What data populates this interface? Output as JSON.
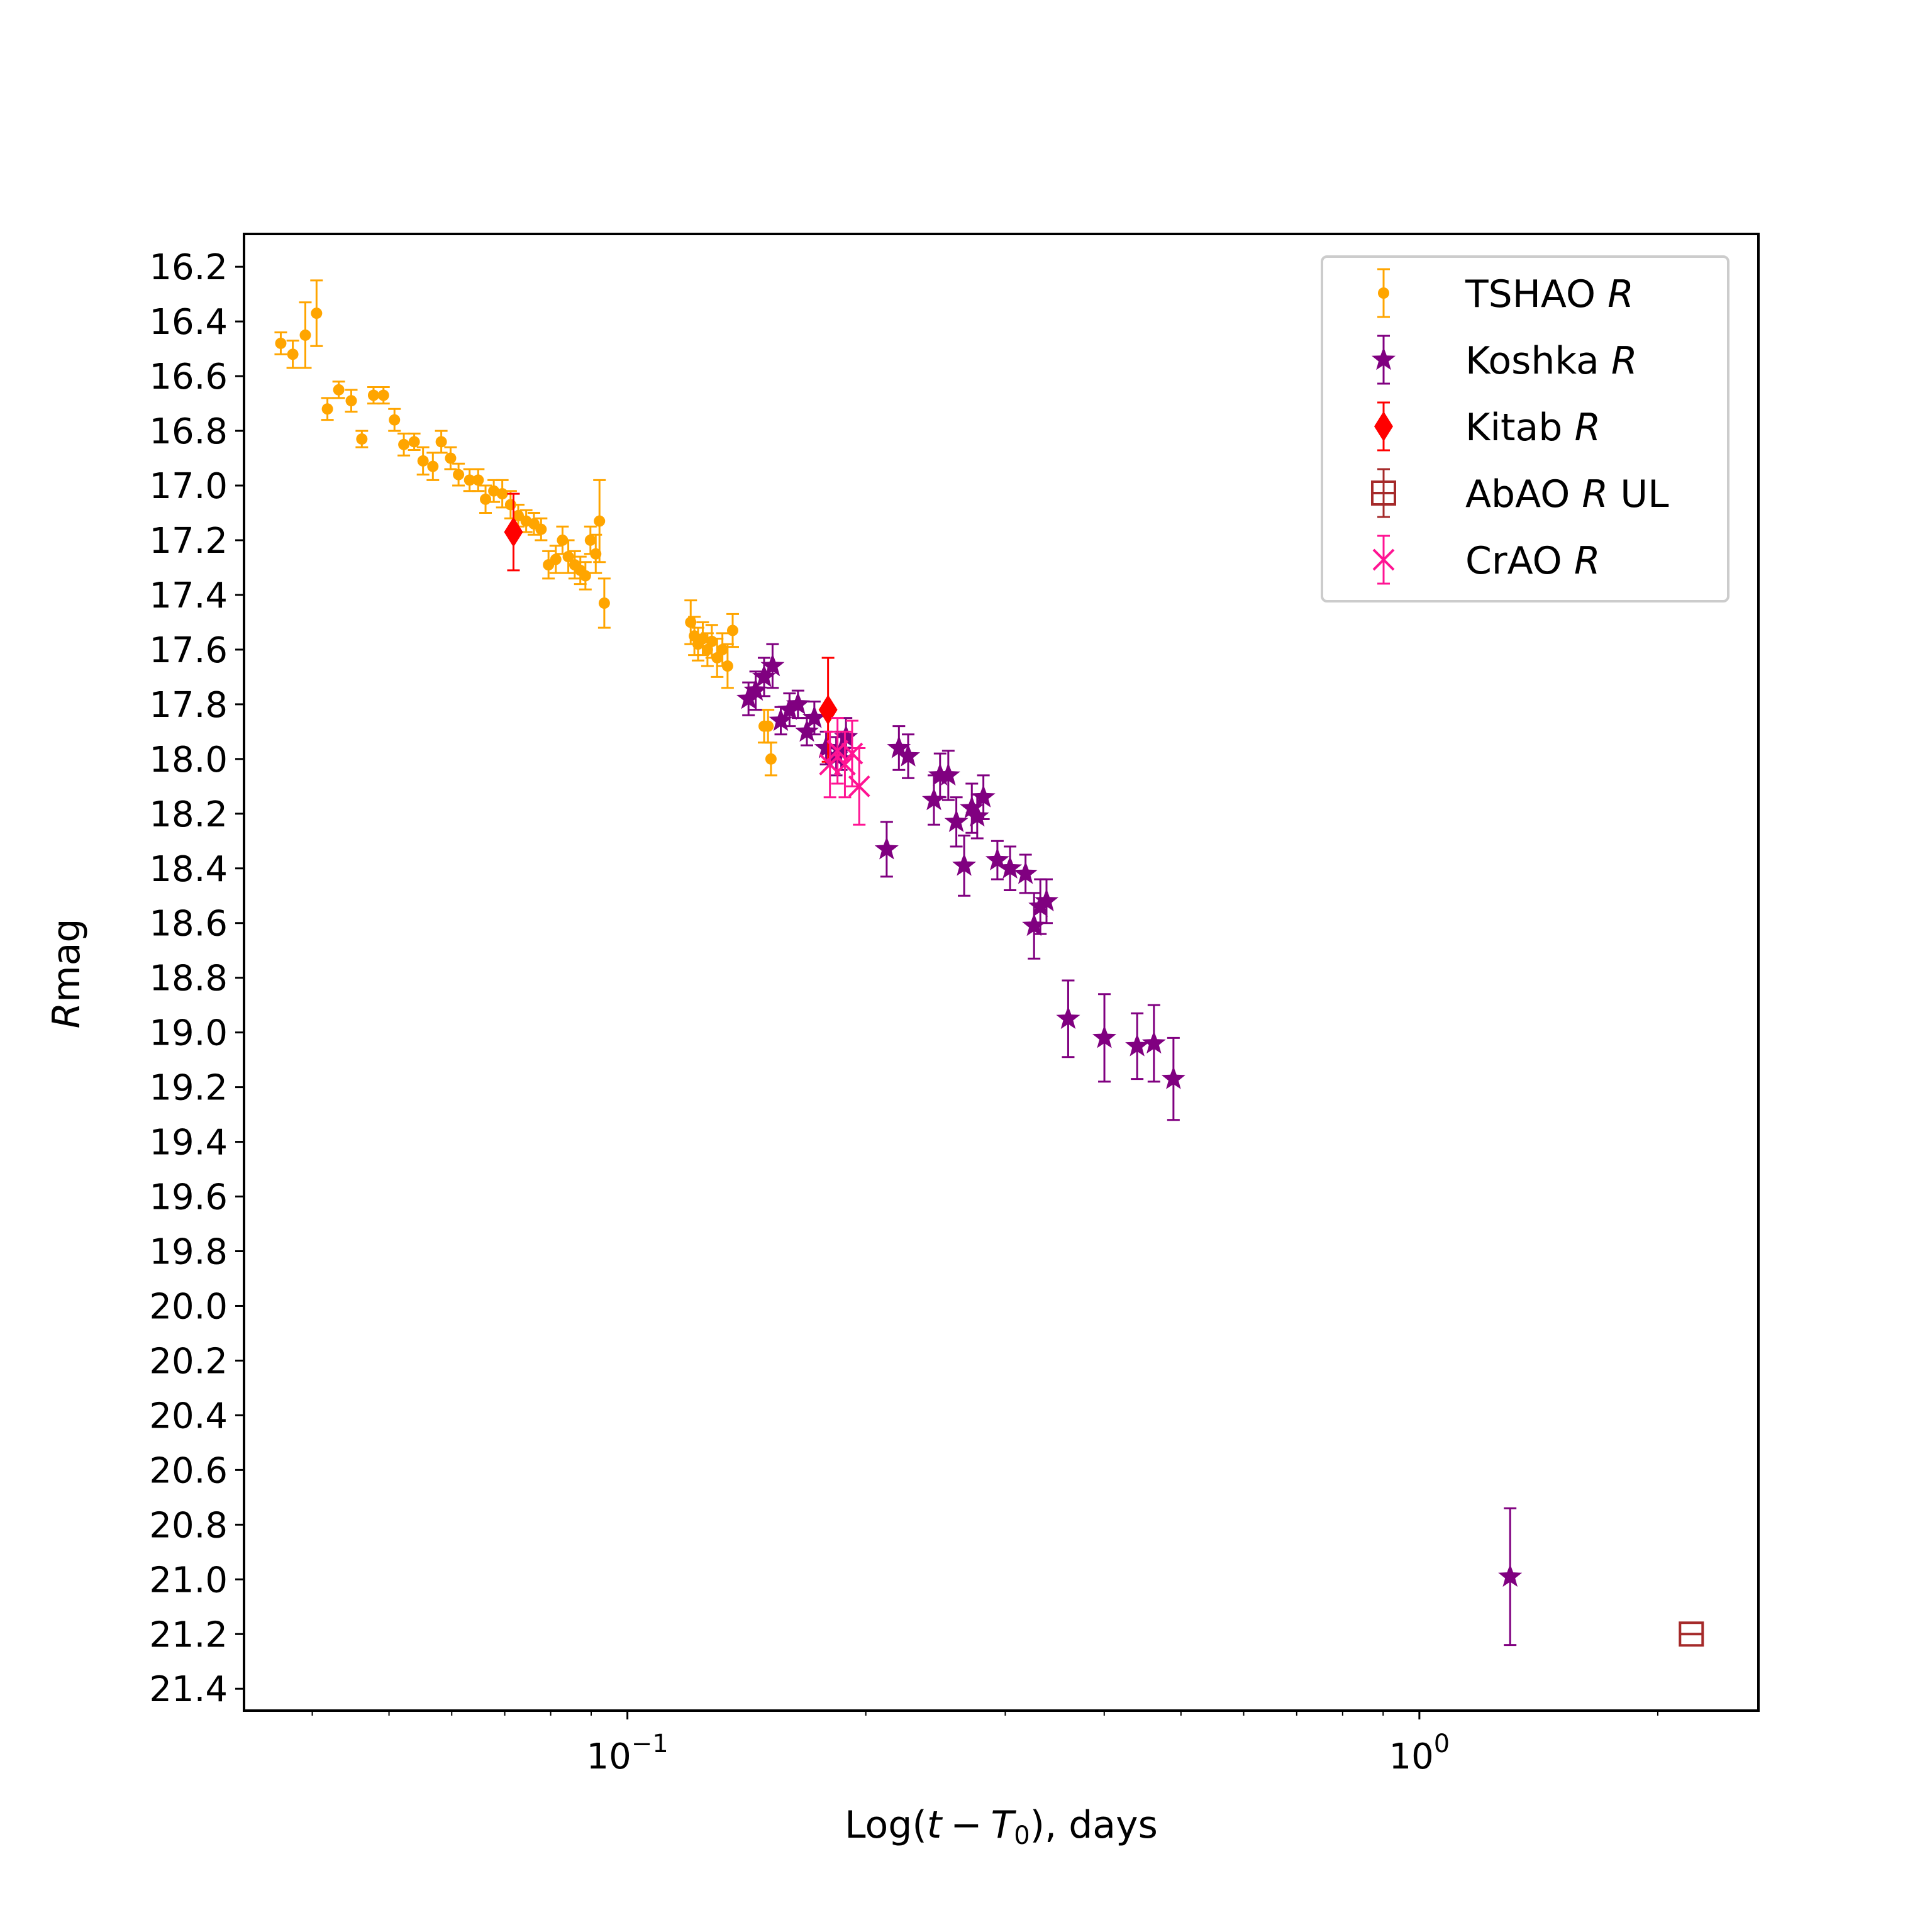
{
  "chart_data": {
    "type": "scatter",
    "title": "",
    "xlabel": {
      "prefix": "Log(",
      "t": "t",
      "minus": "−",
      "T": "T",
      "sub": "0",
      "suffix": "), days"
    },
    "ylabel": {
      "italic": "R",
      "rest": "mag"
    },
    "x_scale": "log",
    "xlim": [
      0.0328,
      2.68
    ],
    "ylim": [
      21.48,
      16.08
    ],
    "y_inverted": true,
    "x_ticks": [
      {
        "base": "10",
        "exp": "−1"
      },
      {
        "base": "10",
        "exp": "0"
      }
    ],
    "y_tick_labels": [
      "16.2",
      "16.4",
      "16.6",
      "16.8",
      "17.0",
      "17.2",
      "17.4",
      "17.6",
      "17.8",
      "18.0",
      "18.2",
      "18.4",
      "18.6",
      "18.8",
      "19.0",
      "19.2",
      "19.4",
      "19.6",
      "19.8",
      "20.0",
      "20.2",
      "20.4",
      "20.6",
      "20.8",
      "21.0",
      "21.2",
      "21.4"
    ],
    "grid": false,
    "legend_position": "top-right",
    "series": [
      {
        "name": "TSHAO",
        "band": "R",
        "marker": "dot",
        "color": "#ffa500",
        "points": [
          [
            0.0365,
            16.48,
            0.04
          ],
          [
            0.0378,
            16.52,
            0.05
          ],
          [
            0.0392,
            16.45,
            0.12
          ],
          [
            0.0405,
            16.37,
            0.12
          ],
          [
            0.0418,
            16.72,
            0.04
          ],
          [
            0.0432,
            16.65,
            0.03
          ],
          [
            0.0448,
            16.69,
            0.04
          ],
          [
            0.0462,
            16.83,
            0.03
          ],
          [
            0.0478,
            16.67,
            0.03
          ],
          [
            0.0492,
            16.67,
            0.03
          ],
          [
            0.0508,
            16.76,
            0.04
          ],
          [
            0.0522,
            16.85,
            0.04
          ],
          [
            0.0538,
            16.84,
            0.03
          ],
          [
            0.0552,
            16.91,
            0.05
          ],
          [
            0.0568,
            16.93,
            0.05
          ],
          [
            0.0582,
            16.84,
            0.04
          ],
          [
            0.0598,
            16.9,
            0.04
          ],
          [
            0.0612,
            16.96,
            0.04
          ],
          [
            0.0632,
            16.98,
            0.04
          ],
          [
            0.0648,
            16.98,
            0.04
          ],
          [
            0.0662,
            17.05,
            0.05
          ],
          [
            0.0678,
            17.02,
            0.04
          ],
          [
            0.0695,
            17.03,
            0.05
          ],
          [
            0.0712,
            17.07,
            0.05
          ],
          [
            0.0728,
            17.11,
            0.04
          ],
          [
            0.0745,
            17.13,
            0.04
          ],
          [
            0.0762,
            17.14,
            0.04
          ],
          [
            0.0778,
            17.16,
            0.04
          ],
          [
            0.0795,
            17.29,
            0.05
          ],
          [
            0.0812,
            17.27,
            0.05
          ],
          [
            0.0828,
            17.2,
            0.05
          ],
          [
            0.0842,
            17.26,
            0.06
          ],
          [
            0.0858,
            17.29,
            0.05
          ],
          [
            0.0872,
            17.31,
            0.05
          ],
          [
            0.0885,
            17.33,
            0.05
          ],
          [
            0.0898,
            17.2,
            0.05
          ],
          [
            0.0912,
            17.25,
            0.07
          ],
          [
            0.0922,
            17.13,
            0.15
          ],
          [
            0.0935,
            17.43,
            0.09
          ],
          [
            0.1202,
            17.5,
            0.08
          ],
          [
            0.1215,
            17.55,
            0.07
          ],
          [
            0.1228,
            17.58,
            0.06
          ],
          [
            0.1245,
            17.56,
            0.06
          ],
          [
            0.1262,
            17.6,
            0.06
          ],
          [
            0.1278,
            17.57,
            0.06
          ],
          [
            0.1298,
            17.63,
            0.07
          ],
          [
            0.1318,
            17.6,
            0.06
          ],
          [
            0.1338,
            17.66,
            0.08
          ],
          [
            0.1358,
            17.53,
            0.06
          ],
          [
            0.1488,
            17.88,
            0.06
          ],
          [
            0.1505,
            17.88,
            0.06
          ],
          [
            0.1518,
            18.0,
            0.06
          ]
        ]
      },
      {
        "name": "Koshka",
        "band": "R",
        "marker": "star",
        "color": "#800080",
        "points": [
          [
            0.1422,
            17.78,
            0.06
          ],
          [
            0.1452,
            17.75,
            0.07
          ],
          [
            0.1488,
            17.7,
            0.07
          ],
          [
            0.1525,
            17.66,
            0.08
          ],
          [
            0.1562,
            17.86,
            0.05
          ],
          [
            0.1602,
            17.82,
            0.06
          ],
          [
            0.1642,
            17.8,
            0.05
          ],
          [
            0.1685,
            17.9,
            0.05
          ],
          [
            0.1722,
            17.85,
            0.06
          ],
          [
            0.1782,
            17.96,
            0.06
          ],
          [
            0.1835,
            17.99,
            0.07
          ],
          [
            0.1862,
            17.97,
            0.07
          ],
          [
            0.1888,
            17.92,
            0.07
          ],
          [
            0.2125,
            18.33,
            0.1
          ],
          [
            0.2202,
            17.96,
            0.08
          ],
          [
            0.2262,
            17.99,
            0.08
          ],
          [
            0.2438,
            18.15,
            0.09
          ],
          [
            0.2482,
            18.06,
            0.08
          ],
          [
            0.2542,
            18.06,
            0.09
          ],
          [
            0.2602,
            18.23,
            0.09
          ],
          [
            0.2662,
            18.39,
            0.11
          ],
          [
            0.2722,
            18.18,
            0.09
          ],
          [
            0.2765,
            18.21,
            0.08
          ],
          [
            0.2815,
            18.14,
            0.08
          ],
          [
            0.2932,
            18.37,
            0.07
          ],
          [
            0.3042,
            18.4,
            0.08
          ],
          [
            0.3182,
            18.42,
            0.07
          ],
          [
            0.3262,
            18.61,
            0.12
          ],
          [
            0.3322,
            18.54,
            0.1
          ],
          [
            0.3382,
            18.52,
            0.08
          ],
          [
            0.3602,
            18.95,
            0.14
          ],
          [
            0.4002,
            19.02,
            0.16
          ],
          [
            0.4402,
            19.05,
            0.12
          ],
          [
            0.4622,
            19.04,
            0.14
          ],
          [
            0.4892,
            19.17,
            0.15
          ],
          [
            1.302,
            20.99,
            0.25
          ]
        ]
      },
      {
        "name": "Kitab",
        "band": "R",
        "marker": "diamond",
        "color": "#ff0000",
        "points": [
          [
            0.0718,
            17.17,
            0.14
          ],
          [
            0.1792,
            17.82,
            0.19
          ]
        ]
      },
      {
        "name": "AbAO",
        "band": "R",
        "suffix": "UL",
        "marker": "open-square",
        "color": "#a52a2a",
        "points": [
          [
            2.205,
            21.2,
            0.0
          ]
        ]
      },
      {
        "name": "CrAO",
        "band": "R",
        "marker": "x",
        "color": "#ff1493",
        "points": [
          [
            0.1802,
            18.02,
            0.12
          ],
          [
            0.1842,
            17.97,
            0.12
          ],
          [
            0.1882,
            18.02,
            0.12
          ],
          [
            0.1922,
            17.98,
            0.12
          ],
          [
            0.1962,
            18.1,
            0.14
          ]
        ]
      }
    ]
  }
}
